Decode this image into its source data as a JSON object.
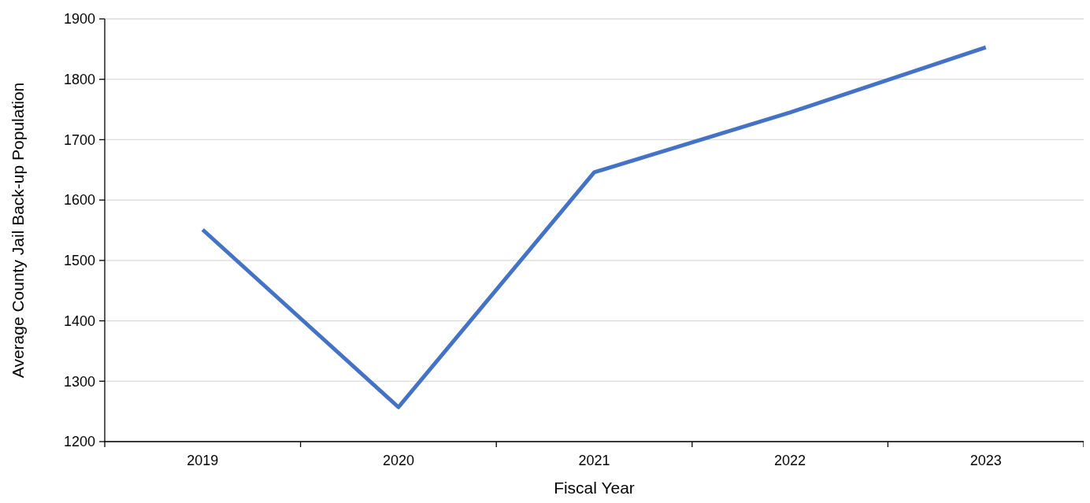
{
  "chart_data": {
    "type": "line",
    "xlabel": "Fiscal Year",
    "ylabel": "Average County Jail Back-up Population",
    "categories": [
      "2019",
      "2020",
      "2021",
      "2022",
      "2023"
    ],
    "series": [
      {
        "color": "#4472c4",
        "values": [
          1551,
          1257,
          1646,
          1745,
          1853
        ]
      }
    ],
    "ylim": [
      1200,
      1900
    ],
    "yticks": [
      1200,
      1300,
      1400,
      1500,
      1600,
      1700,
      1800,
      1900
    ],
    "grid": "y",
    "marker": "none",
    "line_style": "solid"
  }
}
